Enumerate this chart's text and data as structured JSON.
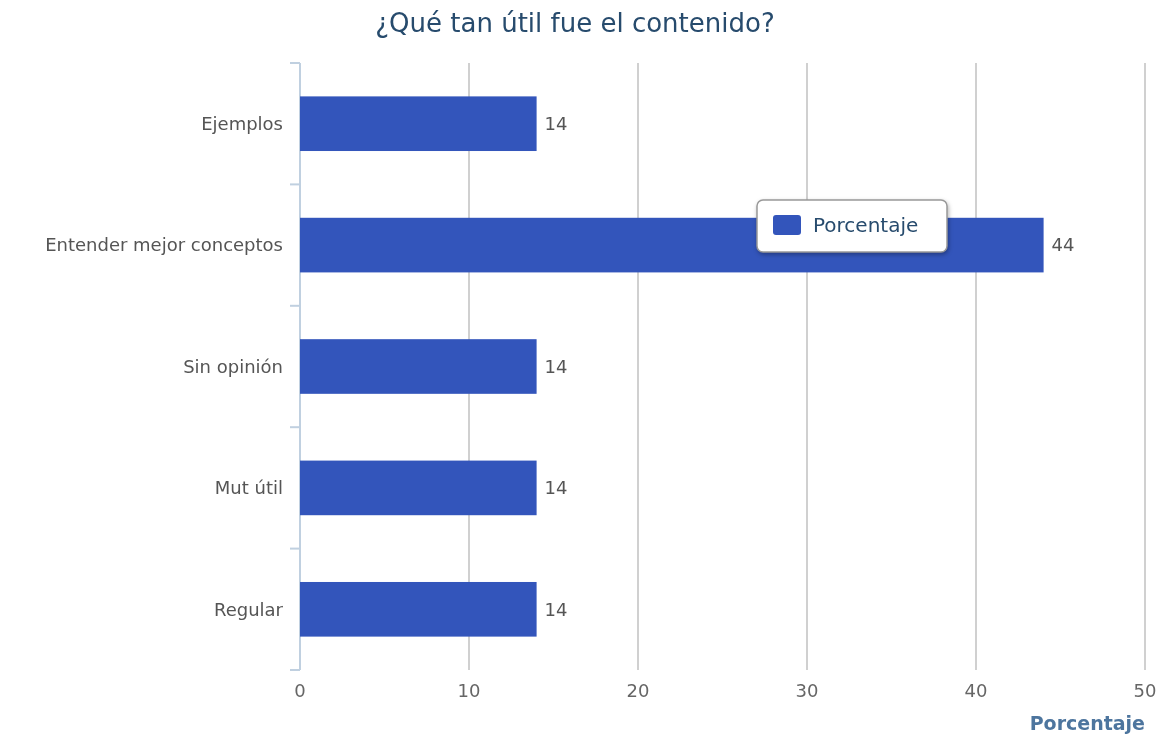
{
  "chart_data": {
    "type": "bar",
    "orientation": "horizontal",
    "title": "¿Qué tan útil fue el contenido?",
    "xlabel": "Porcentaje",
    "categories": [
      "Ejemplos",
      "Entender mejor conceptos",
      "Sin opinión",
      "Mut útil",
      "Regular"
    ],
    "series": [
      {
        "name": "Porcentaje",
        "color": "#3355bb",
        "values": [
          14,
          44,
          14,
          14,
          14
        ]
      }
    ],
    "xlim": [
      0,
      50
    ],
    "xticks": [
      0,
      10,
      20,
      30,
      40,
      50
    ],
    "grid": "x",
    "legend": "top right",
    "data_labels": true
  }
}
